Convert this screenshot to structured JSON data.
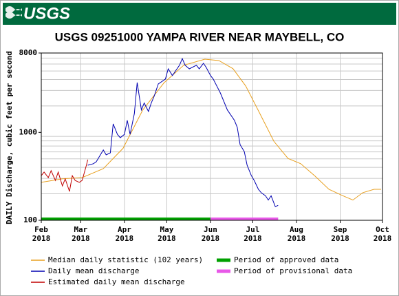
{
  "header": {
    "logo": "USGS"
  },
  "chart_data": {
    "type": "line",
    "title": "USGS 09251000 YAMPA RIVER NEAR MAYBELL, CO",
    "ylabel": "DAILY Discharge, cubic feet per second",
    "log_y": true,
    "grid": true,
    "ylim": [
      100,
      8000
    ],
    "yticks": [
      100,
      1000,
      8000
    ],
    "ygrid": [
      200,
      300,
      400,
      500,
      600,
      700,
      800,
      900,
      2000,
      3000,
      4000,
      5000,
      6000,
      7000
    ],
    "xlim": [
      "2018-02",
      "2018-10"
    ],
    "xticks": [
      {
        "value": "2018-02",
        "month": "Feb",
        "year": "2018"
      },
      {
        "value": "2018-03",
        "month": "Mar",
        "year": "2018"
      },
      {
        "value": "2018-04",
        "month": "Apr",
        "year": "2018"
      },
      {
        "value": "2018-05",
        "month": "May",
        "year": "2018"
      },
      {
        "value": "2018-06",
        "month": "Jun",
        "year": "2018"
      },
      {
        "value": "2018-07",
        "month": "Jul",
        "year": "2018"
      },
      {
        "value": "2018-08",
        "month": "Aug",
        "year": "2018"
      },
      {
        "value": "2018-09",
        "month": "Sep",
        "year": "2018"
      },
      {
        "value": "2018-10",
        "month": "Oct",
        "year": "2018"
      }
    ],
    "series": [
      {
        "name": "Median daily statistic (102 years)",
        "color": "#e8a020",
        "x": [
          "2018-02-01",
          "2018-02-16",
          "2018-03-02",
          "2018-03-17",
          "2018-03-31",
          "2018-04-14",
          "2018-04-29",
          "2018-05-13",
          "2018-05-28",
          "2018-06-07",
          "2018-06-17",
          "2018-06-26",
          "2018-07-06",
          "2018-07-16",
          "2018-07-26",
          "2018-08-04",
          "2018-08-14",
          "2018-08-24",
          "2018-09-03",
          "2018-09-10",
          "2018-09-17",
          "2018-09-25",
          "2018-09-30"
        ],
        "values": [
          270,
          296,
          306,
          387,
          660,
          1800,
          3660,
          5800,
          6800,
          6560,
          5300,
          3370,
          1640,
          790,
          505,
          440,
          320,
          225,
          190,
          170,
          206,
          225,
          225
        ]
      },
      {
        "name": "Daily mean discharge",
        "color": "#0000b0",
        "x": [
          "2018-03-06",
          "2018-03-10",
          "2018-03-12",
          "2018-03-17",
          "2018-03-19",
          "2018-03-22",
          "2018-03-24",
          "2018-03-27",
          "2018-03-29",
          "2018-04-01",
          "2018-04-03",
          "2018-04-05",
          "2018-04-08",
          "2018-04-10",
          "2018-04-13",
          "2018-04-15",
          "2018-04-18",
          "2018-04-20",
          "2018-04-22",
          "2018-04-25",
          "2018-04-30",
          "2018-05-02",
          "2018-05-05",
          "2018-05-10",
          "2018-05-12",
          "2018-05-14",
          "2018-05-17",
          "2018-05-22",
          "2018-05-24",
          "2018-05-27",
          "2018-05-29",
          "2018-06-01",
          "2018-06-03",
          "2018-06-08",
          "2018-06-13",
          "2018-06-18",
          "2018-06-20",
          "2018-06-22",
          "2018-06-25",
          "2018-06-27",
          "2018-06-30",
          "2018-07-02",
          "2018-07-05",
          "2018-07-07",
          "2018-07-10",
          "2018-07-12",
          "2018-07-14",
          "2018-07-17",
          "2018-07-19"
        ],
        "values": [
          423,
          440,
          463,
          630,
          555,
          585,
          1250,
          950,
          870,
          950,
          1370,
          950,
          1635,
          3690,
          1800,
          2160,
          1730,
          2160,
          2570,
          3560,
          4040,
          5280,
          4440,
          5800,
          6900,
          5800,
          5280,
          5800,
          5280,
          6100,
          5480,
          4440,
          4040,
          2810,
          1800,
          1370,
          1140,
          725,
          605,
          423,
          322,
          284,
          225,
          206,
          190,
          170,
          190,
          143,
          148
        ]
      },
      {
        "name": "Estimated daily mean discharge",
        "color": "#c00000",
        "x": [
          "2018-02-01",
          "2018-02-03",
          "2018-02-06",
          "2018-02-08",
          "2018-02-11",
          "2018-02-13",
          "2018-02-16",
          "2018-02-18",
          "2018-02-21",
          "2018-02-23",
          "2018-02-25",
          "2018-02-28",
          "2018-03-02",
          "2018-03-05",
          "2018-03-06"
        ],
        "values": [
          322,
          354,
          306,
          367,
          284,
          354,
          246,
          296,
          213,
          322,
          284,
          270,
          284,
          423,
          490
        ]
      }
    ],
    "periods": [
      {
        "name": "Period of approved data",
        "color": "#00a000",
        "start": "2018-02-01",
        "end": "2018-06-01"
      },
      {
        "name": "Period of provisional data",
        "color": "#e858e8",
        "start": "2018-06-01",
        "end": "2018-07-19"
      }
    ]
  }
}
